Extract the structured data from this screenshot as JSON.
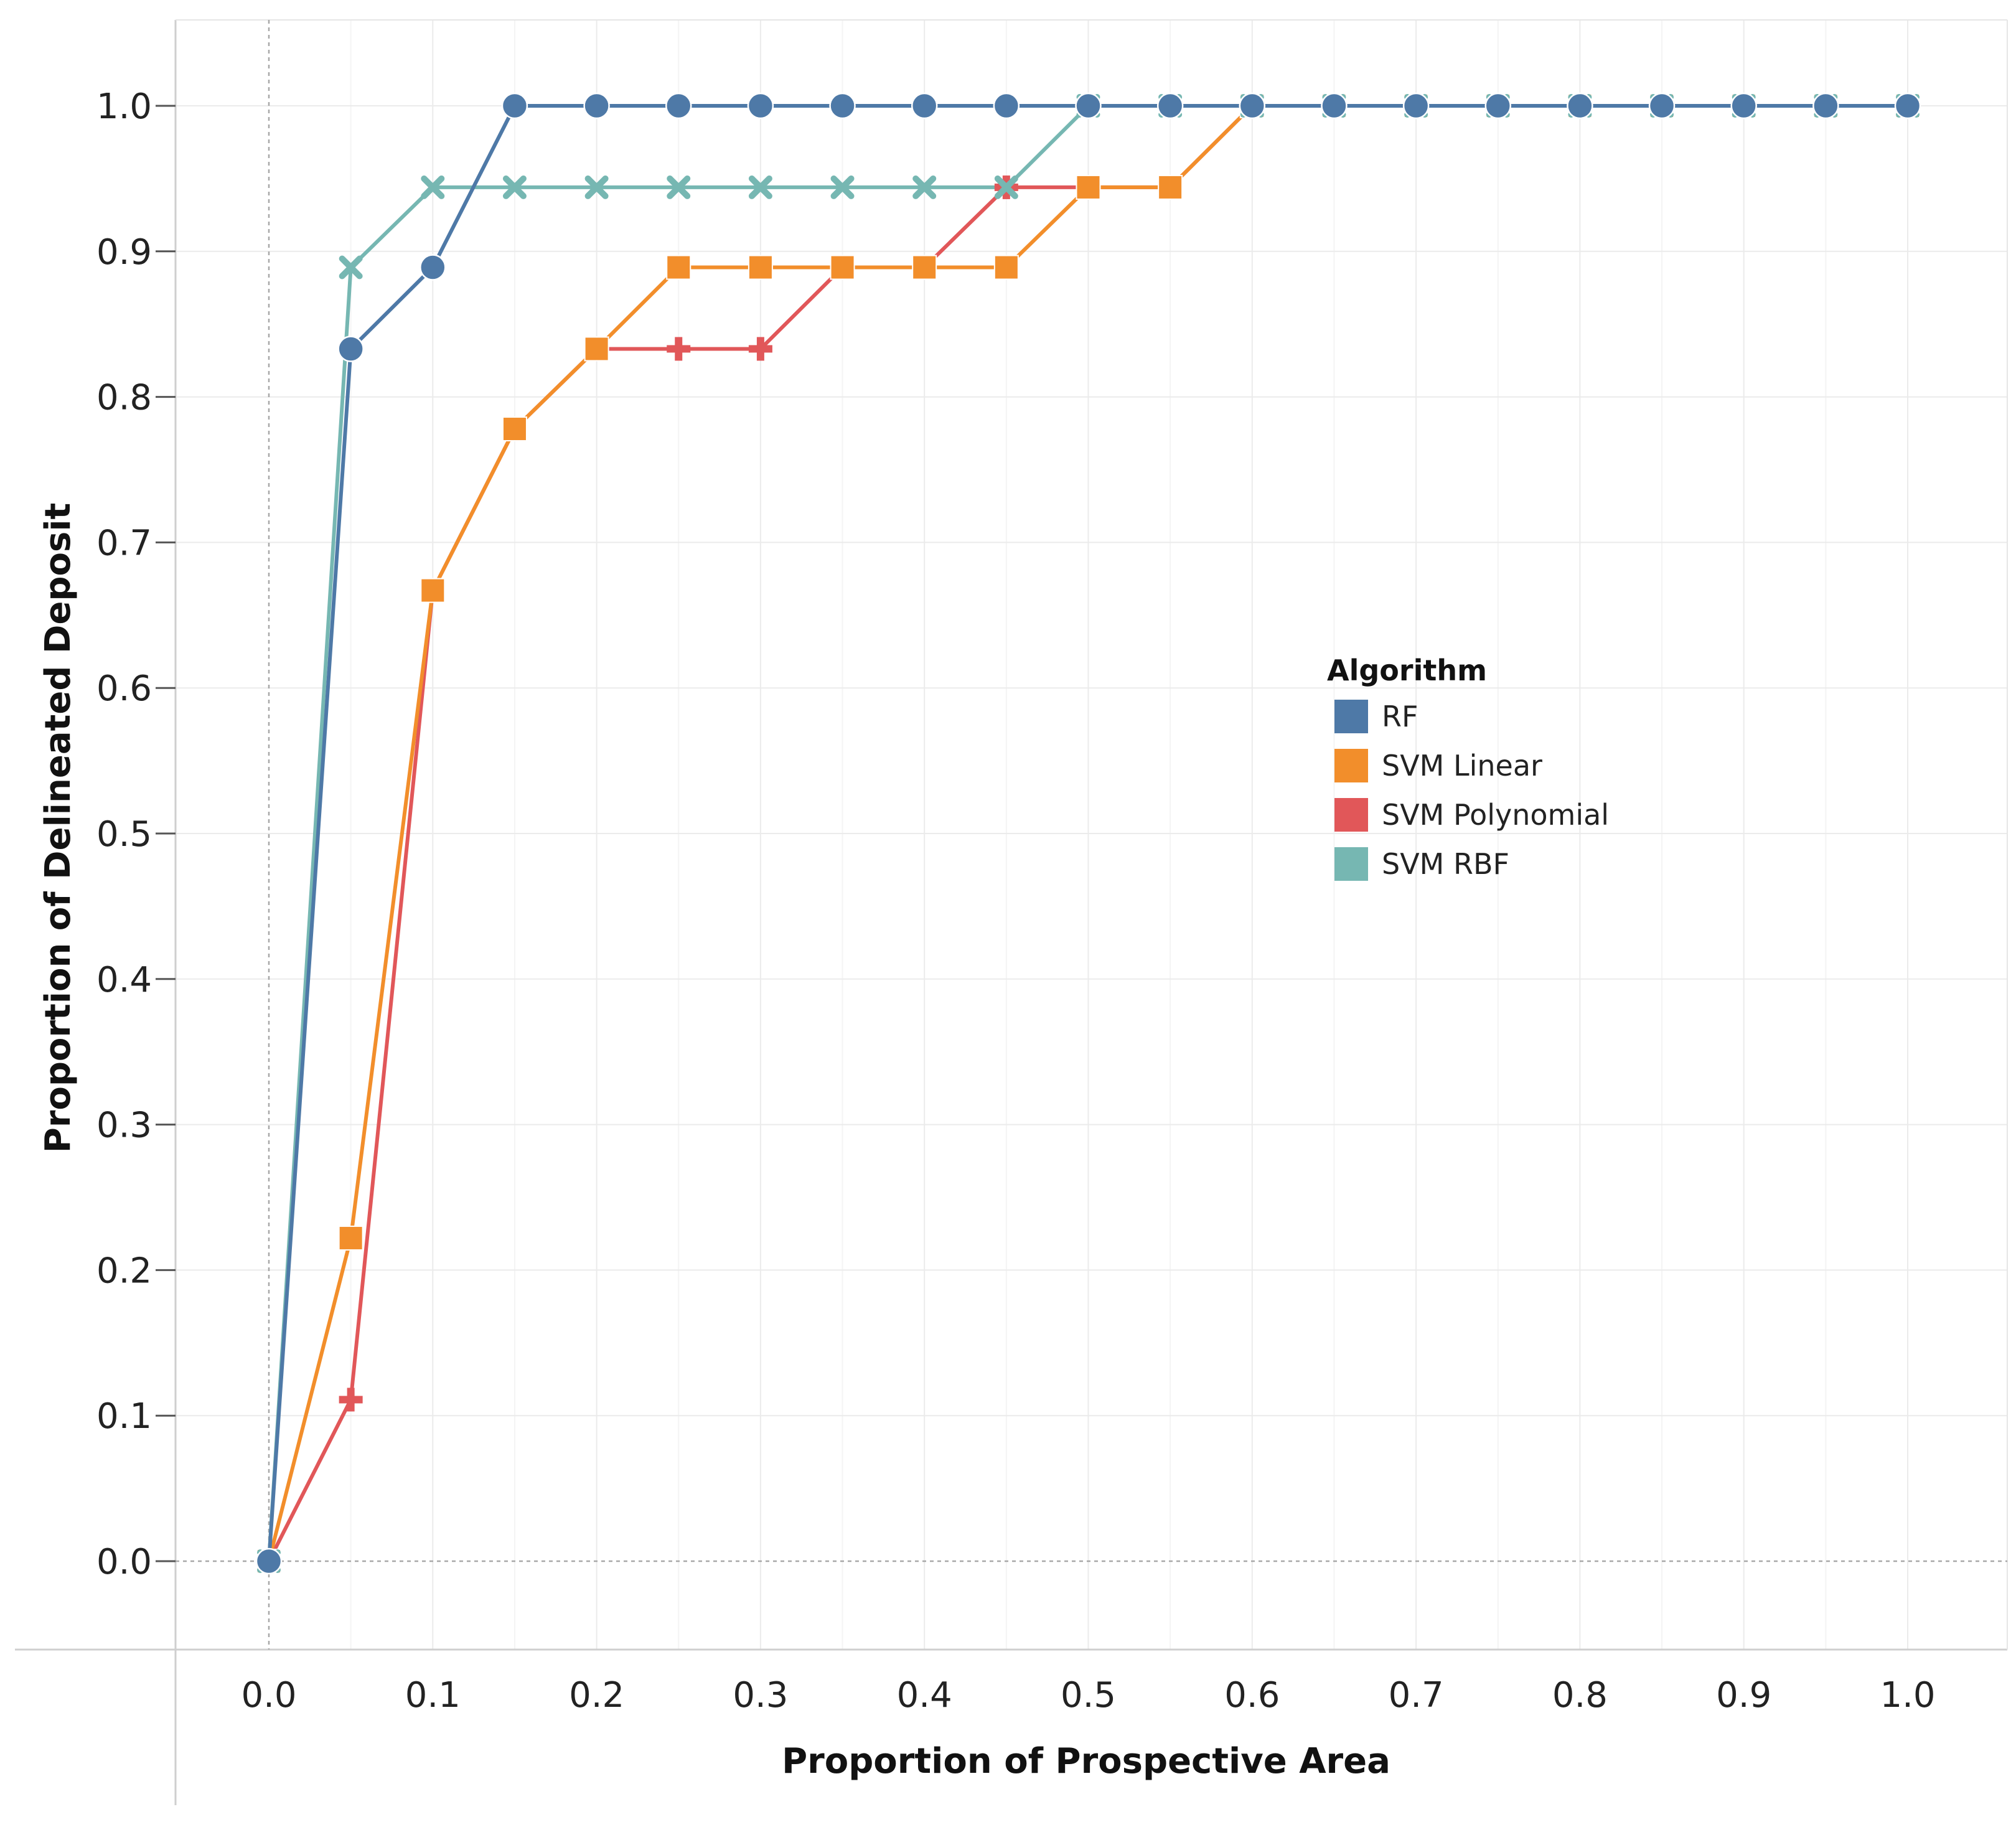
{
  "chart_data": {
    "type": "line",
    "title": "",
    "xlabel": "Proportion of Prospective Area",
    "ylabel": "Proportion of Delineated Deposit",
    "xlim": [
      -0.11,
      1.05
    ],
    "ylim": [
      -0.06,
      1.06
    ],
    "grid": true,
    "x": [
      0.0,
      0.05,
      0.1,
      0.15,
      0.2,
      0.25,
      0.3,
      0.35,
      0.4,
      0.45,
      0.5,
      0.55,
      0.6,
      0.65,
      0.7,
      0.75,
      0.8,
      0.85,
      0.9,
      0.95,
      1.0
    ],
    "x_ticks": [
      {
        "value": 0.0,
        "label": "0.0"
      },
      {
        "value": 0.1,
        "label": "0.1"
      },
      {
        "value": 0.2,
        "label": "0.2"
      },
      {
        "value": 0.3,
        "label": "0.3"
      },
      {
        "value": 0.4,
        "label": "0.4"
      },
      {
        "value": 0.5,
        "label": "0.5"
      },
      {
        "value": 0.6,
        "label": "0.6"
      },
      {
        "value": 0.7,
        "label": "0.7"
      },
      {
        "value": 0.8,
        "label": "0.8"
      },
      {
        "value": 0.9,
        "label": "0.9"
      },
      {
        "value": 1.0,
        "label": "1.0"
      }
    ],
    "y_ticks": [
      {
        "value": 0.0,
        "label": "0.0"
      },
      {
        "value": 0.1,
        "label": "0.1"
      },
      {
        "value": 0.2,
        "label": "0.2"
      },
      {
        "value": 0.3,
        "label": "0.3"
      },
      {
        "value": 0.4,
        "label": "0.4"
      },
      {
        "value": 0.5,
        "label": "0.5"
      },
      {
        "value": 0.6,
        "label": "0.6"
      },
      {
        "value": 0.7,
        "label": "0.7"
      },
      {
        "value": 0.8,
        "label": "0.8"
      },
      {
        "value": 0.9,
        "label": "0.9"
      },
      {
        "value": 1.0,
        "label": "1.0"
      }
    ],
    "legend": {
      "title": "Algorithm",
      "position": "right-center"
    },
    "series": [
      {
        "name": "SVM Polynomial",
        "color": "#e15759",
        "marker": "plus",
        "values": [
          0.0,
          0.111,
          0.667,
          0.778,
          0.833,
          0.833,
          0.833,
          0.889,
          0.889,
          0.944,
          0.944,
          0.944,
          1.0,
          1.0,
          1.0,
          1.0,
          1.0,
          1.0,
          1.0,
          1.0,
          1.0
        ]
      },
      {
        "name": "SVM Linear",
        "color": "#f28e2b",
        "marker": "square",
        "values": [
          0.0,
          0.222,
          0.667,
          0.778,
          0.833,
          0.889,
          0.889,
          0.889,
          0.889,
          0.889,
          0.944,
          0.944,
          1.0,
          1.0,
          1.0,
          1.0,
          1.0,
          1.0,
          1.0,
          1.0,
          1.0
        ]
      },
      {
        "name": "SVM RBF",
        "color": "#76b7b2",
        "marker": "x",
        "values": [
          0.0,
          0.889,
          0.944,
          0.944,
          0.944,
          0.944,
          0.944,
          0.944,
          0.944,
          0.944,
          1.0,
          1.0,
          1.0,
          1.0,
          1.0,
          1.0,
          1.0,
          1.0,
          1.0,
          1.0,
          1.0
        ]
      },
      {
        "name": "RF",
        "color": "#4e79a7",
        "marker": "circle",
        "values": [
          0.0,
          0.833,
          0.889,
          1.0,
          1.0,
          1.0,
          1.0,
          1.0,
          1.0,
          1.0,
          1.0,
          1.0,
          1.0,
          1.0,
          1.0,
          1.0,
          1.0,
          1.0,
          1.0,
          1.0,
          1.0
        ]
      }
    ],
    "legend_order": [
      "RF",
      "SVM Linear",
      "SVM Polynomial",
      "SVM RBF"
    ]
  }
}
